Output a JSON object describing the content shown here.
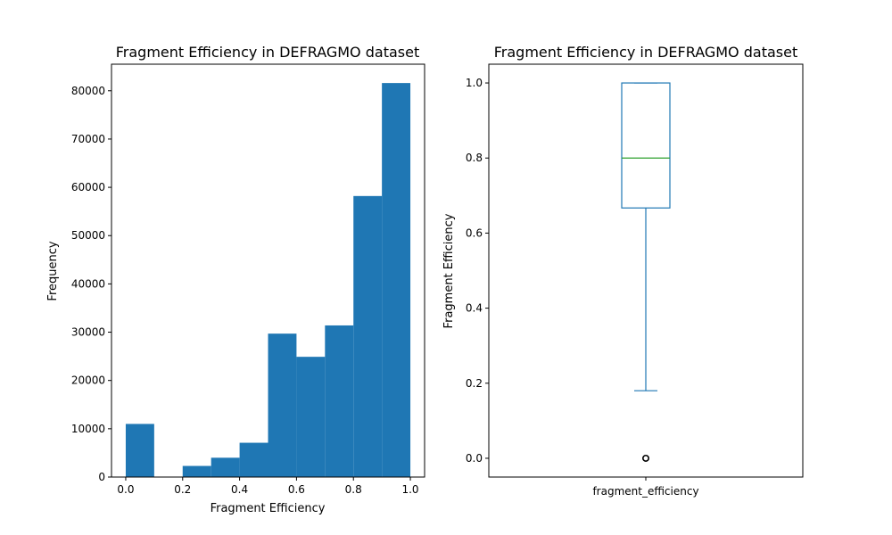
{
  "chart_data": [
    {
      "type": "bar",
      "title": "Fragment Efficiency in DEFRAGMO dataset",
      "xlabel": "Fragment Efficiency",
      "ylabel": "Frequency",
      "xlim": [
        -0.05,
        1.05
      ],
      "ylim": [
        0,
        85500
      ],
      "xticks": [
        "0.0",
        "0.2",
        "0.4",
        "0.6",
        "0.8",
        "1.0"
      ],
      "yticks": [
        "0",
        "10000",
        "20000",
        "30000",
        "40000",
        "50000",
        "60000",
        "70000",
        "80000"
      ],
      "bins": [
        {
          "x0": 0.0,
          "x1": 0.1,
          "value": 11000
        },
        {
          "x0": 0.1,
          "x1": 0.2,
          "value": 0
        },
        {
          "x0": 0.2,
          "x1": 0.3,
          "value": 2300
        },
        {
          "x0": 0.3,
          "x1": 0.4,
          "value": 4000
        },
        {
          "x0": 0.4,
          "x1": 0.5,
          "value": 7100
        },
        {
          "x0": 0.5,
          "x1": 0.6,
          "value": 29700
        },
        {
          "x0": 0.6,
          "x1": 0.7,
          "value": 24900
        },
        {
          "x0": 0.7,
          "x1": 0.8,
          "value": 31400
        },
        {
          "x0": 0.8,
          "x1": 0.9,
          "value": 58200
        },
        {
          "x0": 0.9,
          "x1": 1.0,
          "value": 81600
        }
      ],
      "color": "#1f77b4",
      "grid": false
    },
    {
      "type": "box",
      "title": "Fragment Efficiency in DEFRAGMO dataset",
      "xlabel": "",
      "ylabel": "Fragment Efficiency",
      "category": "fragment_efficiency",
      "ylim": [
        -0.05,
        1.05
      ],
      "yticks": [
        "0.0",
        "0.2",
        "0.4",
        "0.6",
        "0.8",
        "1.0"
      ],
      "whisker_low": 0.18,
      "q1": 0.667,
      "median": 0.8,
      "q3": 1.0,
      "whisker_high": 1.0,
      "outliers": [
        0.0
      ],
      "box_color": "#1f77b4",
      "median_color": "#2ca02c",
      "grid": false
    }
  ]
}
